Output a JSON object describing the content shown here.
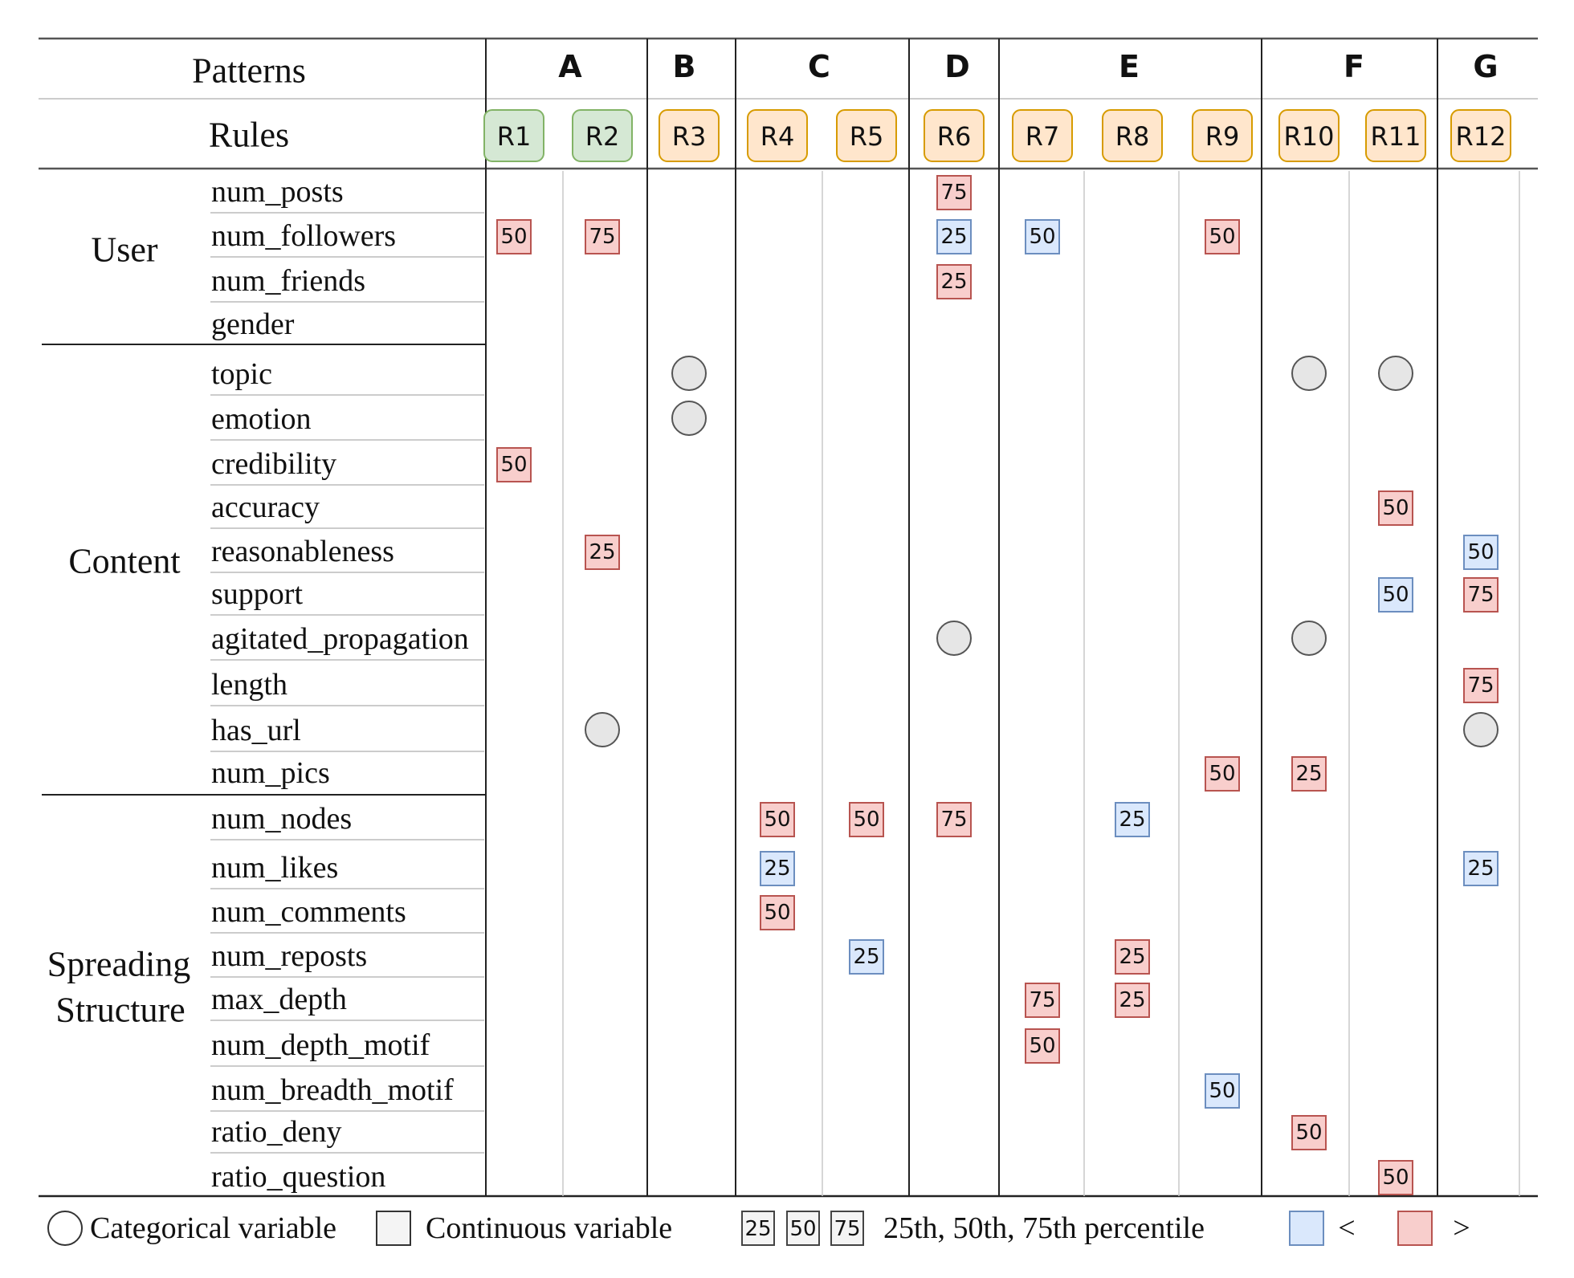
{
  "colors": {
    "pattern_green_fill": "#d5e8d4",
    "pattern_green_stroke": "#82b366",
    "pattern_orange_fill": "#ffe6cc",
    "pattern_orange_stroke": "#d79b00",
    "less_fill": "#dae8fc",
    "less_stroke": "#6c8ebf",
    "greater_fill": "#f8cecc",
    "greater_stroke": "#b85450",
    "circle_fill": "#e6e6e6",
    "circle_stroke": "#555555"
  },
  "header": {
    "patterns_label": "Patterns",
    "rules_label": "Rules",
    "patterns": [
      "A",
      "B",
      "C",
      "D",
      "E",
      "F",
      "G"
    ],
    "rules": [
      {
        "label": "R1",
        "pattern": "A",
        "color": "green"
      },
      {
        "label": "R2",
        "pattern": "A",
        "color": "green"
      },
      {
        "label": "R3",
        "pattern": "B",
        "color": "orange"
      },
      {
        "label": "R4",
        "pattern": "C",
        "color": "orange"
      },
      {
        "label": "R5",
        "pattern": "C",
        "color": "orange"
      },
      {
        "label": "R6",
        "pattern": "D",
        "color": "orange"
      },
      {
        "label": "R7",
        "pattern": "E",
        "color": "orange"
      },
      {
        "label": "R8",
        "pattern": "E",
        "color": "orange"
      },
      {
        "label": "R9",
        "pattern": "E",
        "color": "orange"
      },
      {
        "label": "R10",
        "pattern": "F",
        "color": "orange"
      },
      {
        "label": "R11",
        "pattern": "F",
        "color": "orange"
      },
      {
        "label": "R12",
        "pattern": "G",
        "color": "orange"
      }
    ]
  },
  "groups": [
    {
      "label": "User",
      "features": [
        "num_posts",
        "num_followers",
        "num_friends",
        "gender"
      ]
    },
    {
      "label": "Content",
      "features": [
        "topic",
        "emotion",
        "credibility",
        "accuracy",
        "reasonableness",
        "support",
        "agitated_propagation",
        "length",
        "has_url",
        "num_pics"
      ]
    },
    {
      "label": "Spreading Structure",
      "label_lines": [
        "Spreading",
        "Structure"
      ],
      "features": [
        "num_nodes",
        "num_likes",
        "num_comments",
        "num_reposts",
        "max_depth",
        "num_depth_motif",
        "num_breadth_motif",
        "ratio_deny",
        "ratio_question"
      ]
    }
  ],
  "cells": [
    {
      "feature": "num_posts",
      "rule": "R6",
      "kind": "continuous",
      "percentile": "75",
      "direction": ">"
    },
    {
      "feature": "num_followers",
      "rule": "R1",
      "kind": "continuous",
      "percentile": "50",
      "direction": ">"
    },
    {
      "feature": "num_followers",
      "rule": "R2",
      "kind": "continuous",
      "percentile": "75",
      "direction": ">"
    },
    {
      "feature": "num_followers",
      "rule": "R6",
      "kind": "continuous",
      "percentile": "25",
      "direction": "<"
    },
    {
      "feature": "num_followers",
      "rule": "R7",
      "kind": "continuous",
      "percentile": "50",
      "direction": "<"
    },
    {
      "feature": "num_followers",
      "rule": "R9",
      "kind": "continuous",
      "percentile": "50",
      "direction": ">"
    },
    {
      "feature": "num_friends",
      "rule": "R6",
      "kind": "continuous",
      "percentile": "25",
      "direction": ">"
    },
    {
      "feature": "topic",
      "rule": "R3",
      "kind": "categorical"
    },
    {
      "feature": "topic",
      "rule": "R10",
      "kind": "categorical"
    },
    {
      "feature": "topic",
      "rule": "R11",
      "kind": "categorical"
    },
    {
      "feature": "emotion",
      "rule": "R3",
      "kind": "categorical"
    },
    {
      "feature": "credibility",
      "rule": "R1",
      "kind": "continuous",
      "percentile": "50",
      "direction": ">"
    },
    {
      "feature": "accuracy",
      "rule": "R11",
      "kind": "continuous",
      "percentile": "50",
      "direction": ">"
    },
    {
      "feature": "reasonableness",
      "rule": "R2",
      "kind": "continuous",
      "percentile": "25",
      "direction": ">"
    },
    {
      "feature": "reasonableness",
      "rule": "R12",
      "kind": "continuous",
      "percentile": "50",
      "direction": "<"
    },
    {
      "feature": "support",
      "rule": "R11",
      "kind": "continuous",
      "percentile": "50",
      "direction": "<"
    },
    {
      "feature": "support",
      "rule": "R12",
      "kind": "continuous",
      "percentile": "75",
      "direction": ">"
    },
    {
      "feature": "agitated_propagation",
      "rule": "R6",
      "kind": "categorical"
    },
    {
      "feature": "agitated_propagation",
      "rule": "R10",
      "kind": "categorical"
    },
    {
      "feature": "length",
      "rule": "R12",
      "kind": "continuous",
      "percentile": "75",
      "direction": ">"
    },
    {
      "feature": "has_url",
      "rule": "R2",
      "kind": "categorical"
    },
    {
      "feature": "has_url",
      "rule": "R12",
      "kind": "categorical"
    },
    {
      "feature": "num_pics",
      "rule": "R9",
      "kind": "continuous",
      "percentile": "50",
      "direction": ">"
    },
    {
      "feature": "num_pics",
      "rule": "R10",
      "kind": "continuous",
      "percentile": "25",
      "direction": ">"
    },
    {
      "feature": "num_nodes",
      "rule": "R4",
      "kind": "continuous",
      "percentile": "50",
      "direction": ">"
    },
    {
      "feature": "num_nodes",
      "rule": "R5",
      "kind": "continuous",
      "percentile": "50",
      "direction": ">"
    },
    {
      "feature": "num_nodes",
      "rule": "R6",
      "kind": "continuous",
      "percentile": "75",
      "direction": ">"
    },
    {
      "feature": "num_nodes",
      "rule": "R8",
      "kind": "continuous",
      "percentile": "25",
      "direction": "<"
    },
    {
      "feature": "num_likes",
      "rule": "R4",
      "kind": "continuous",
      "percentile": "25",
      "direction": "<"
    },
    {
      "feature": "num_likes",
      "rule": "R12",
      "kind": "continuous",
      "percentile": "25",
      "direction": "<"
    },
    {
      "feature": "num_comments",
      "rule": "R4",
      "kind": "continuous",
      "percentile": "50",
      "direction": ">"
    },
    {
      "feature": "num_reposts",
      "rule": "R5",
      "kind": "continuous",
      "percentile": "25",
      "direction": "<"
    },
    {
      "feature": "num_reposts",
      "rule": "R8",
      "kind": "continuous",
      "percentile": "25",
      "direction": ">"
    },
    {
      "feature": "max_depth",
      "rule": "R7",
      "kind": "continuous",
      "percentile": "75",
      "direction": ">"
    },
    {
      "feature": "max_depth",
      "rule": "R8",
      "kind": "continuous",
      "percentile": "25",
      "direction": ">"
    },
    {
      "feature": "num_depth_motif",
      "rule": "R7",
      "kind": "continuous",
      "percentile": "50",
      "direction": ">"
    },
    {
      "feature": "num_breadth_motif",
      "rule": "R9",
      "kind": "continuous",
      "percentile": "50",
      "direction": "<"
    },
    {
      "feature": "ratio_deny",
      "rule": "R10",
      "kind": "continuous",
      "percentile": "50",
      "direction": ">"
    },
    {
      "feature": "ratio_question",
      "rule": "R11",
      "kind": "continuous",
      "percentile": "50",
      "direction": ">"
    }
  ],
  "legend": {
    "categorical_label": "Categorical variable",
    "continuous_label": "Continuous variable",
    "percentiles": [
      "25",
      "50",
      "75"
    ],
    "percentile_label": "25th, 50th, 75th percentile",
    "less_label": "<",
    "greater_label": ">"
  }
}
